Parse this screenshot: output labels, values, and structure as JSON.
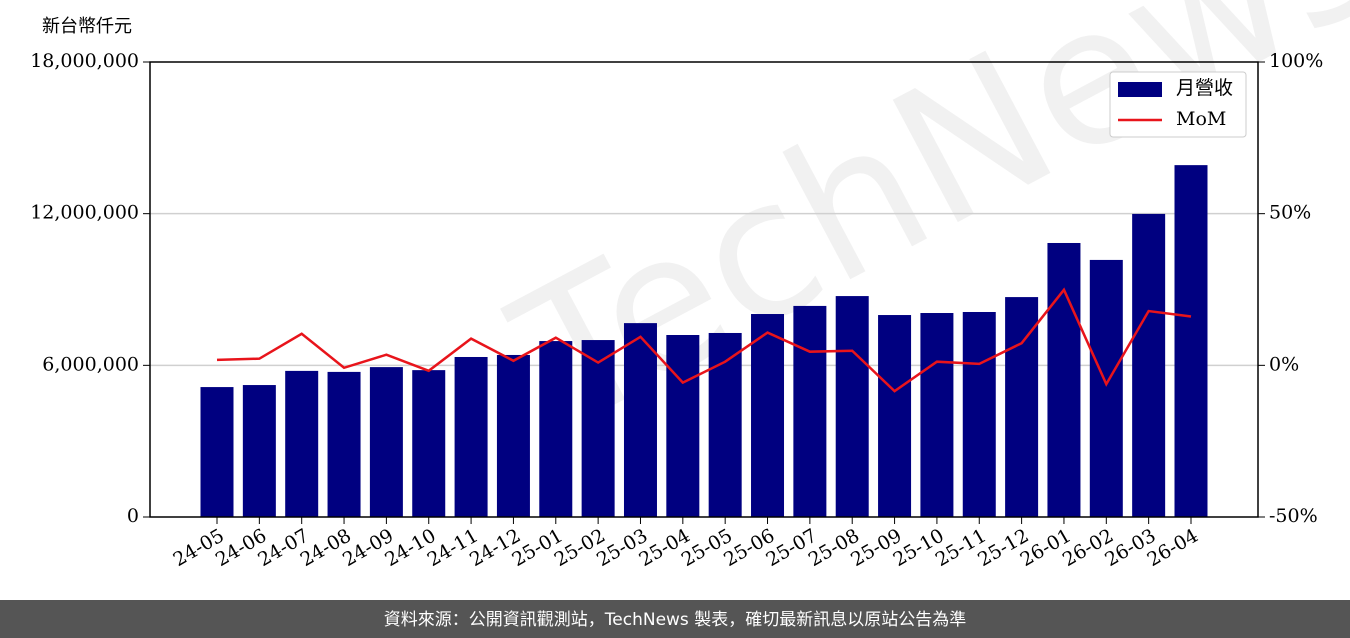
{
  "chart_data": {
    "type": "bar_line",
    "y_label": "新台幣仟元",
    "watermark": "TechNews",
    "footer": "資料來源：公開資訊觀測站，TechNews 製表，確切最新訊息以原站公告為準",
    "categories": [
      "24-05",
      "24-06",
      "24-07",
      "24-08",
      "24-09",
      "24-10",
      "24-11",
      "24-12",
      "25-01",
      "25-02",
      "25-03",
      "25-04",
      "25-05",
      "25-06",
      "25-07",
      "25-08",
      "25-09",
      "25-10",
      "25-11",
      "25-12",
      "26-01",
      "26-02",
      "26-03",
      "26-04"
    ],
    "series": [
      {
        "name": "月營收",
        "type": "bar",
        "color": "#000080",
        "axis": "y",
        "values": [
          5140000,
          5220000,
          5780000,
          5740000,
          5930000,
          5810000,
          6330000,
          6410000,
          6960000,
          7000000,
          7670000,
          7200000,
          7280000,
          8030000,
          8350000,
          8740000,
          7990000,
          8070000,
          8110000,
          8700000,
          10840000,
          10170000,
          11990000,
          13920000
        ]
      },
      {
        "name": "MoM",
        "type": "line",
        "color": "#e8141b",
        "axis": "y2",
        "values": [
          1.8,
          2.2,
          10.4,
          -0.8,
          3.5,
          -1.8,
          8.8,
          1.5,
          9.1,
          0.9,
          9.4,
          -5.7,
          1.2,
          10.8,
          4.5,
          4.8,
          -8.5,
          1.2,
          0.5,
          7.3,
          24.9,
          -6.2,
          17.9,
          16.1
        ]
      }
    ],
    "ylim": [
      0,
      18000000
    ],
    "yticks": [
      0,
      {
        "value": 6000000,
        "label": "6,000,000"
      },
      {
        "value": 12000000,
        "label": "12,000,000"
      },
      {
        "value": 18000000,
        "label": "18,000,000"
      }
    ],
    "y2lim": [
      -50,
      100
    ],
    "y2ticks": [
      {
        "value": -50,
        "label": "-50%"
      },
      {
        "value": 0,
        "label": "0%"
      },
      {
        "value": 50,
        "label": "50%"
      },
      {
        "value": 100,
        "label": "100%"
      }
    ],
    "grid": true,
    "legend": "upper right"
  }
}
